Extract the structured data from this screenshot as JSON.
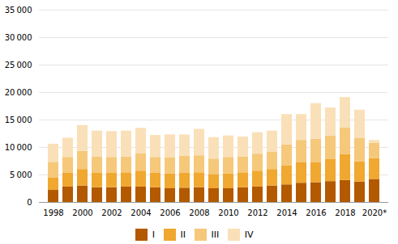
{
  "chart_data": {
    "type": "bar",
    "stacked": true,
    "grid": true,
    "legend": "bottom",
    "categories": [
      "1998",
      null,
      "2000",
      null,
      "2002",
      null,
      "2004",
      null,
      "2006",
      null,
      "2008",
      null,
      "2010",
      null,
      "2012",
      null,
      "2014",
      null,
      "2016",
      null,
      "2018",
      null,
      "2020*"
    ],
    "series": [
      {
        "name": "I",
        "color": "#b35900",
        "values": [
          2200,
          2800,
          3000,
          2700,
          2700,
          2800,
          2800,
          2700,
          2500,
          2600,
          2700,
          2500,
          2500,
          2700,
          2800,
          3000,
          3200,
          3500,
          3600,
          3800,
          4000,
          3700,
          4200
        ]
      },
      {
        "name": "II",
        "color": "#f0a830",
        "values": [
          2300,
          2500,
          3000,
          2600,
          2600,
          2600,
          2900,
          2600,
          2700,
          2700,
          2700,
          2600,
          2700,
          2700,
          2900,
          3000,
          3500,
          3800,
          3700,
          4000,
          4700,
          3700,
          3800
        ]
      },
      {
        "name": "III",
        "color": "#f5c87a",
        "values": [
          2800,
          2900,
          3300,
          3000,
          2900,
          2900,
          3200,
          2900,
          2900,
          3100,
          3100,
          2800,
          3000,
          2900,
          3100,
          3200,
          3800,
          4000,
          4200,
          4300,
          4900,
          4300,
          2800
        ]
      },
      {
        "name": "IV",
        "color": "#fae0b8",
        "values": [
          3300,
          3500,
          4700,
          4700,
          4700,
          4700,
          4600,
          4000,
          4200,
          3900,
          4800,
          3900,
          3900,
          3600,
          3900,
          3800,
          5500,
          4700,
          6500,
          5100,
          5500,
          5100,
          500
        ]
      }
    ],
    "ylim": [
      0,
      35000
    ],
    "yticks": [
      0,
      {
        "value": 5000,
        "label": "5 000"
      },
      {
        "value": 10000,
        "label": "10 000"
      },
      {
        "value": 15000,
        "label": "15 000"
      },
      {
        "value": 20000,
        "label": "20 000"
      },
      {
        "value": 25000,
        "label": "25 000"
      },
      {
        "value": 30000,
        "label": "30 000"
      },
      {
        "value": 35000,
        "label": "35 000"
      }
    ]
  }
}
